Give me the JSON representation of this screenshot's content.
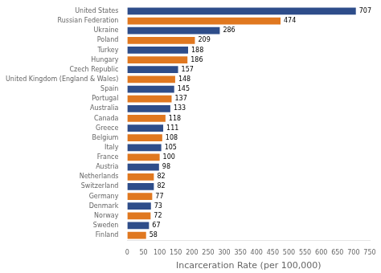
{
  "chart_data": {
    "type": "bar",
    "orientation": "horizontal",
    "categories": [
      "Finland",
      "Sweden",
      "Norway",
      "Denmark",
      "Germany",
      "Switzerland",
      "Netherlands",
      "Austria",
      "France",
      "Italy",
      "Belgium",
      "Greece",
      "Canada",
      "Australia",
      "Portugal",
      "Spain",
      "United Kingdom (England & Wales)",
      "Czech Republic",
      "Hungary",
      "Turkey",
      "Poland",
      "Ukraine",
      "Russian Federation",
      "United States"
    ],
    "values": [
      58,
      67,
      72,
      73,
      77,
      82,
      82,
      98,
      100,
      105,
      108,
      111,
      118,
      133,
      137,
      145,
      148,
      157,
      186,
      188,
      209,
      286,
      474,
      707
    ],
    "colors": [
      "#e07820",
      "#2e4d8a",
      "#e07820",
      "#2e4d8a",
      "#e07820",
      "#2e4d8a",
      "#e07820",
      "#2e4d8a",
      "#e07820",
      "#2e4d8a",
      "#e07820",
      "#2e4d8a",
      "#e07820",
      "#2e4d8a",
      "#e07820",
      "#2e4d8a",
      "#e07820",
      "#2e4d8a",
      "#e07820",
      "#2e4d8a",
      "#e07820",
      "#2e4d8a",
      "#e07820",
      "#2e4d8a"
    ],
    "xlabel": "Incarceration Rate (per 100,000)",
    "xlim": [
      0,
      750
    ],
    "xticks": [
      0,
      50,
      100,
      150,
      200,
      250,
      300,
      350,
      400,
      450,
      500,
      550,
      600,
      650,
      700,
      750
    ],
    "data_labels": true,
    "grid": false
  }
}
